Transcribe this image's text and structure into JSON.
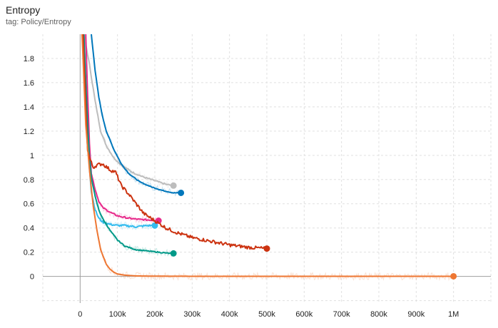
{
  "chart_data": {
    "type": "line",
    "title": "Entropy",
    "subtitle": "tag: Policy/Entropy",
    "xlim": [
      -100000,
      1100000
    ],
    "ylim": [
      -0.22,
      2.0
    ],
    "grid": true,
    "x_ticks": [
      0,
      100000,
      200000,
      300000,
      400000,
      500000,
      600000,
      700000,
      800000,
      900000,
      1000000
    ],
    "x_tick_labels": [
      "0",
      "100k",
      "200k",
      "300k",
      "400k",
      "500k",
      "600k",
      "700k",
      "800k",
      "900k",
      "1M"
    ],
    "y_ticks": [
      0,
      0.2,
      0.4,
      0.6,
      0.8,
      1.0,
      1.2,
      1.4,
      1.6,
      1.8
    ],
    "y_tick_labels": [
      "0",
      "0.2",
      "0.4",
      "0.6",
      "0.8",
      "1",
      "1.2",
      "1.4",
      "1.6",
      "1.8"
    ],
    "series": [
      {
        "color": "#bdbdbd",
        "noise": 0.006,
        "raw": true,
        "x": [
          10000,
          25000,
          40000,
          55000,
          70000,
          90000,
          110000,
          140000,
          170000,
          200000,
          230000,
          250000
        ],
        "y": [
          2.0,
          1.75,
          1.45,
          1.2,
          1.08,
          0.98,
          0.92,
          0.86,
          0.82,
          0.79,
          0.76,
          0.75
        ]
      },
      {
        "color": "#0077bb",
        "noise": 0.003,
        "raw": true,
        "x": [
          30000,
          40000,
          50000,
          60000,
          70000,
          90000,
          110000,
          130000,
          160000,
          190000,
          220000,
          250000,
          270000
        ],
        "y": [
          2.0,
          1.7,
          1.48,
          1.32,
          1.2,
          1.05,
          0.93,
          0.85,
          0.78,
          0.74,
          0.71,
          0.69,
          0.69
        ]
      },
      {
        "color": "#e7298a",
        "noise": 0.006,
        "raw": true,
        "x": [
          15000,
          20000,
          25000,
          30000,
          40000,
          50000,
          60000,
          80000,
          100000,
          130000,
          160000,
          190000,
          210000
        ],
        "y": [
          2.0,
          1.5,
          1.1,
          0.85,
          0.72,
          0.62,
          0.57,
          0.53,
          0.5,
          0.48,
          0.47,
          0.465,
          0.46
        ]
      },
      {
        "color": "#33bbee",
        "noise": 0.008,
        "raw": true,
        "x": [
          10000,
          15000,
          20000,
          25000,
          30000,
          40000,
          50000,
          60000,
          80000,
          100000,
          120000,
          150000,
          180000,
          200000
        ],
        "y": [
          2.0,
          1.6,
          1.2,
          0.9,
          0.7,
          0.55,
          0.48,
          0.45,
          0.43,
          0.42,
          0.42,
          0.41,
          0.42,
          0.42
        ]
      },
      {
        "color": "#009988",
        "noise": 0.004,
        "raw": true,
        "x": [
          10000,
          15000,
          20000,
          25000,
          30000,
          40000,
          50000,
          60000,
          80000,
          100000,
          120000,
          150000,
          180000,
          210000,
          240000,
          250000
        ],
        "y": [
          2.0,
          1.6,
          1.25,
          0.98,
          0.82,
          0.66,
          0.55,
          0.48,
          0.38,
          0.3,
          0.25,
          0.22,
          0.21,
          0.2,
          0.19,
          0.19
        ]
      },
      {
        "color": "#cc3311",
        "noise": 0.014,
        "raw": false,
        "x": [
          8000,
          15000,
          20000,
          25000,
          35000,
          45000,
          60000,
          80000,
          95000,
          110000,
          130000,
          150000,
          170000,
          200000,
          230000,
          260000,
          300000,
          350000,
          400000,
          450000,
          500000
        ],
        "y": [
          2.0,
          1.4,
          1.05,
          0.98,
          0.9,
          0.92,
          0.93,
          0.88,
          0.86,
          0.75,
          0.68,
          0.6,
          0.52,
          0.46,
          0.4,
          0.36,
          0.32,
          0.29,
          0.26,
          0.24,
          0.23
        ]
      },
      {
        "color": "#ee7733",
        "noise": 0.0,
        "raw": true,
        "x": [
          5000,
          15000,
          25000,
          35000,
          45000,
          55000,
          70000,
          80000,
          90000,
          100000,
          120000,
          150000,
          200000,
          300000,
          500000,
          700000,
          1000000
        ],
        "y": [
          2.0,
          1.25,
          0.88,
          0.58,
          0.38,
          0.22,
          0.1,
          0.06,
          0.035,
          0.02,
          0.01,
          0.004,
          0.002,
          0.001,
          0.001,
          0.001,
          0.001
        ]
      }
    ]
  }
}
